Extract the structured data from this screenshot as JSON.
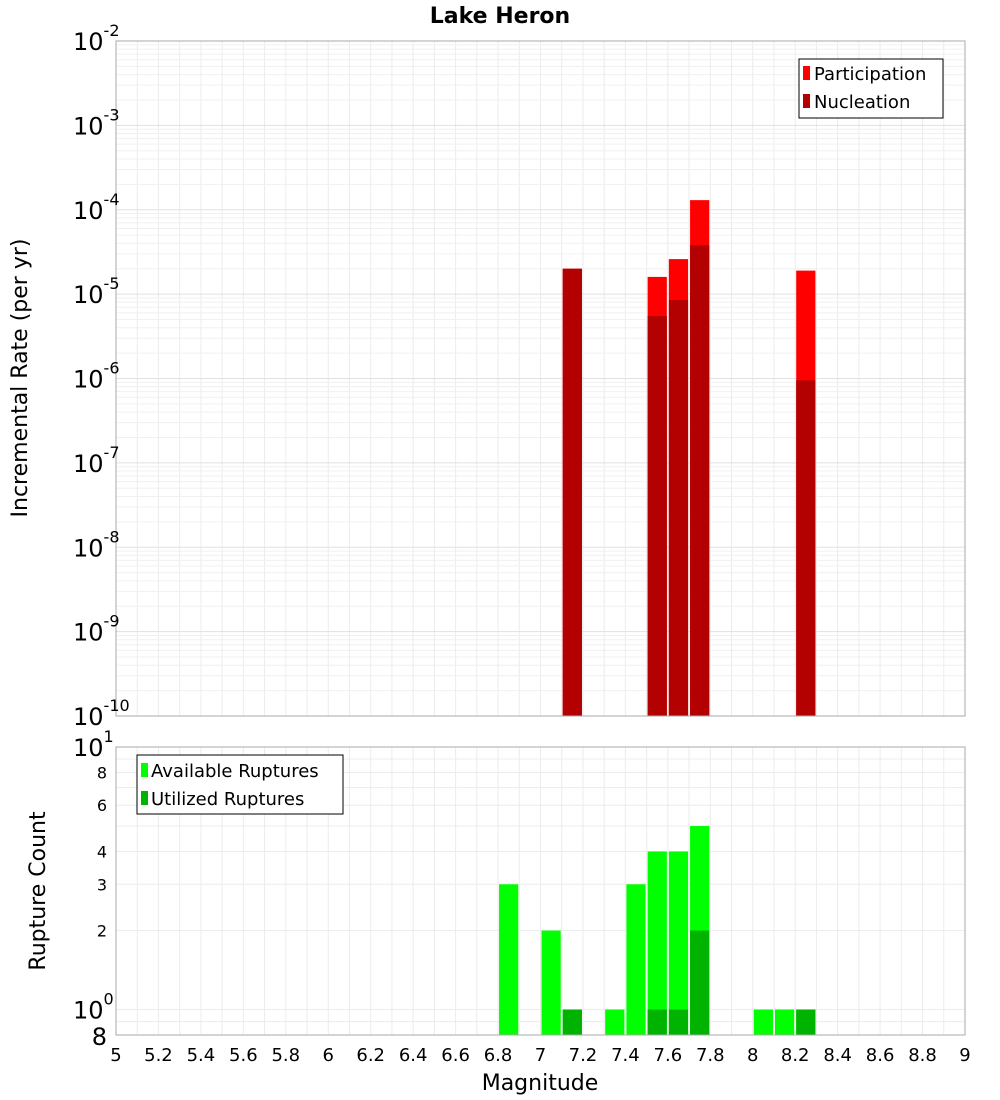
{
  "chart_data": [
    {
      "type": "bar",
      "title": "Lake Heron",
      "xlabel": "Magnitude",
      "ylabel": "Incremental Rate (per yr)",
      "yscale": "log",
      "ylim": [
        1e-10,
        0.01
      ],
      "xlim": [
        5,
        9
      ],
      "bin_width": 0.1,
      "grid": true,
      "legend_position": "top-right",
      "series": [
        {
          "name": "Participation",
          "color": "#ff0000",
          "x": [
            7.15,
            7.55,
            7.65,
            7.75,
            8.25
          ],
          "values": [
            2e-05,
            1.6e-05,
            2.6e-05,
            0.00013,
            1.9e-05
          ]
        },
        {
          "name": "Nucleation",
          "color": "#b30000",
          "x": [
            7.15,
            7.55,
            7.65,
            7.75,
            8.25
          ],
          "values": [
            2e-05,
            5.5e-06,
            8.5e-06,
            3.8e-05,
            9.5e-07
          ]
        }
      ],
      "y_ticks": [
        {
          "base": "10",
          "exp": "-2",
          "value": 0.01
        },
        {
          "base": "10",
          "exp": "-3",
          "value": 0.001
        },
        {
          "base": "10",
          "exp": "-4",
          "value": 0.0001
        },
        {
          "base": "10",
          "exp": "-5",
          "value": 1e-05
        },
        {
          "base": "10",
          "exp": "-6",
          "value": 1e-06
        },
        {
          "base": "10",
          "exp": "-7",
          "value": 1e-07
        },
        {
          "base": "10",
          "exp": "-8",
          "value": 1e-08
        },
        {
          "base": "10",
          "exp": "-9",
          "value": 1e-09
        },
        {
          "base": "10",
          "exp": "-10",
          "value": 1e-10
        }
      ]
    },
    {
      "type": "bar",
      "xlabel": "Magnitude",
      "ylabel": "Rupture Count",
      "yscale": "log",
      "ylim": [
        0.8,
        10
      ],
      "xlim": [
        5,
        9
      ],
      "bin_width": 0.1,
      "grid": true,
      "legend_position": "top-left",
      "series": [
        {
          "name": "Available Ruptures",
          "color": "#00ff00",
          "x": [
            6.85,
            7.05,
            7.15,
            7.35,
            7.45,
            7.55,
            7.65,
            7.75,
            8.05,
            8.15,
            8.25
          ],
          "values": [
            3,
            2,
            1,
            1,
            3,
            4,
            4,
            5,
            1,
            1,
            1
          ]
        },
        {
          "name": "Utilized Ruptures",
          "color": "#00b300",
          "x": [
            7.15,
            7.55,
            7.65,
            7.75,
            8.25
          ],
          "values": [
            1,
            1,
            1,
            2,
            1
          ]
        }
      ],
      "y_ticks_major": [
        {
          "base": "10",
          "exp": "1",
          "value": 10
        },
        {
          "base": "10",
          "exp": "0",
          "value": 1
        }
      ],
      "y_ticks_minor": [
        {
          "label": "8",
          "value": 8
        },
        {
          "label": "6",
          "value": 6
        },
        {
          "label": "4",
          "value": 4
        },
        {
          "label": "3",
          "value": 3
        },
        {
          "label": "2",
          "value": 2
        }
      ],
      "y_tick_bottom": {
        "label": "8",
        "value": 0.8
      }
    }
  ],
  "x_tick_labels": [
    "5",
    "5.2",
    "5.4",
    "5.6",
    "5.8",
    "6",
    "6.2",
    "6.4",
    "6.6",
    "6.8",
    "7",
    "7.2",
    "7.4",
    "7.6",
    "7.8",
    "8",
    "8.2",
    "8.4",
    "8.6",
    "8.8",
    "9"
  ]
}
